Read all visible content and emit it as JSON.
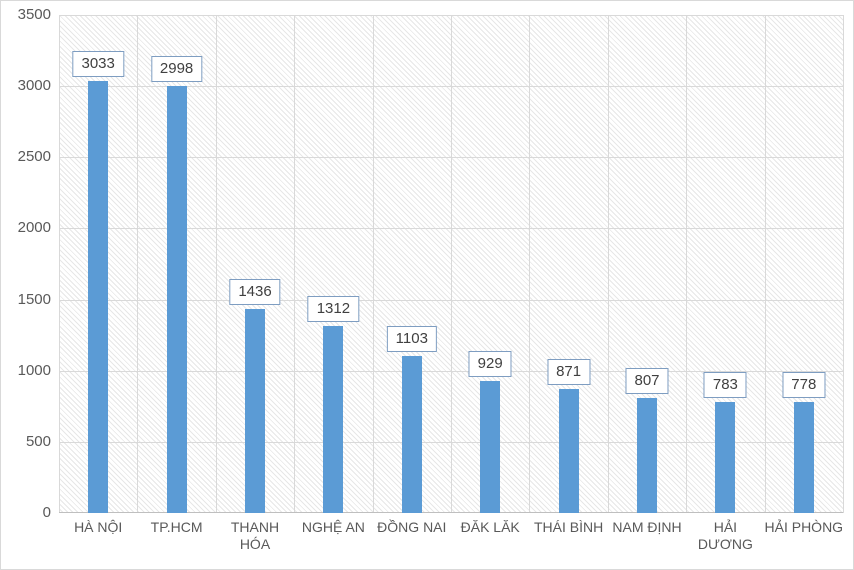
{
  "chart_data": {
    "type": "bar",
    "title": "",
    "xlabel": "",
    "ylabel": "",
    "categories": [
      "HÀ NỘI",
      "TP.HCM",
      "THANH\nHÓA",
      "NGHỆ AN",
      "ĐỒNG NAI",
      "ĐĂK LĂK",
      "THÁI BÌNH",
      "NAM ĐỊNH",
      "HẢI\nDƯƠNG",
      "HẢI PHÒNG"
    ],
    "values": [
      3033,
      2998,
      1436,
      1312,
      1103,
      929,
      871,
      807,
      783,
      778
    ],
    "data_labels": [
      "3033",
      "2998",
      "1436",
      "1312",
      "1103",
      "929",
      "871",
      "807",
      "783",
      "778"
    ],
    "ylim": [
      0,
      3500
    ],
    "yticks": [
      0,
      500,
      1000,
      1500,
      2000,
      2500,
      3000,
      3500
    ],
    "grid": "horizontal and vertical major gridlines on hatched plot area",
    "legend": "none",
    "data_label_style": "boxed value above each bar",
    "colors": {
      "bar": "#5B9BD5",
      "label_box_border": "#7E9DC1",
      "label_box_fill": "#FFFFFF",
      "label_text": "#404040",
      "axis_text": "#595959",
      "gridline": "#D9D9D9",
      "axis_line": "#BFBFBF",
      "plot_hatch": "#E7E7E7",
      "background": "#FFFFFF"
    }
  }
}
